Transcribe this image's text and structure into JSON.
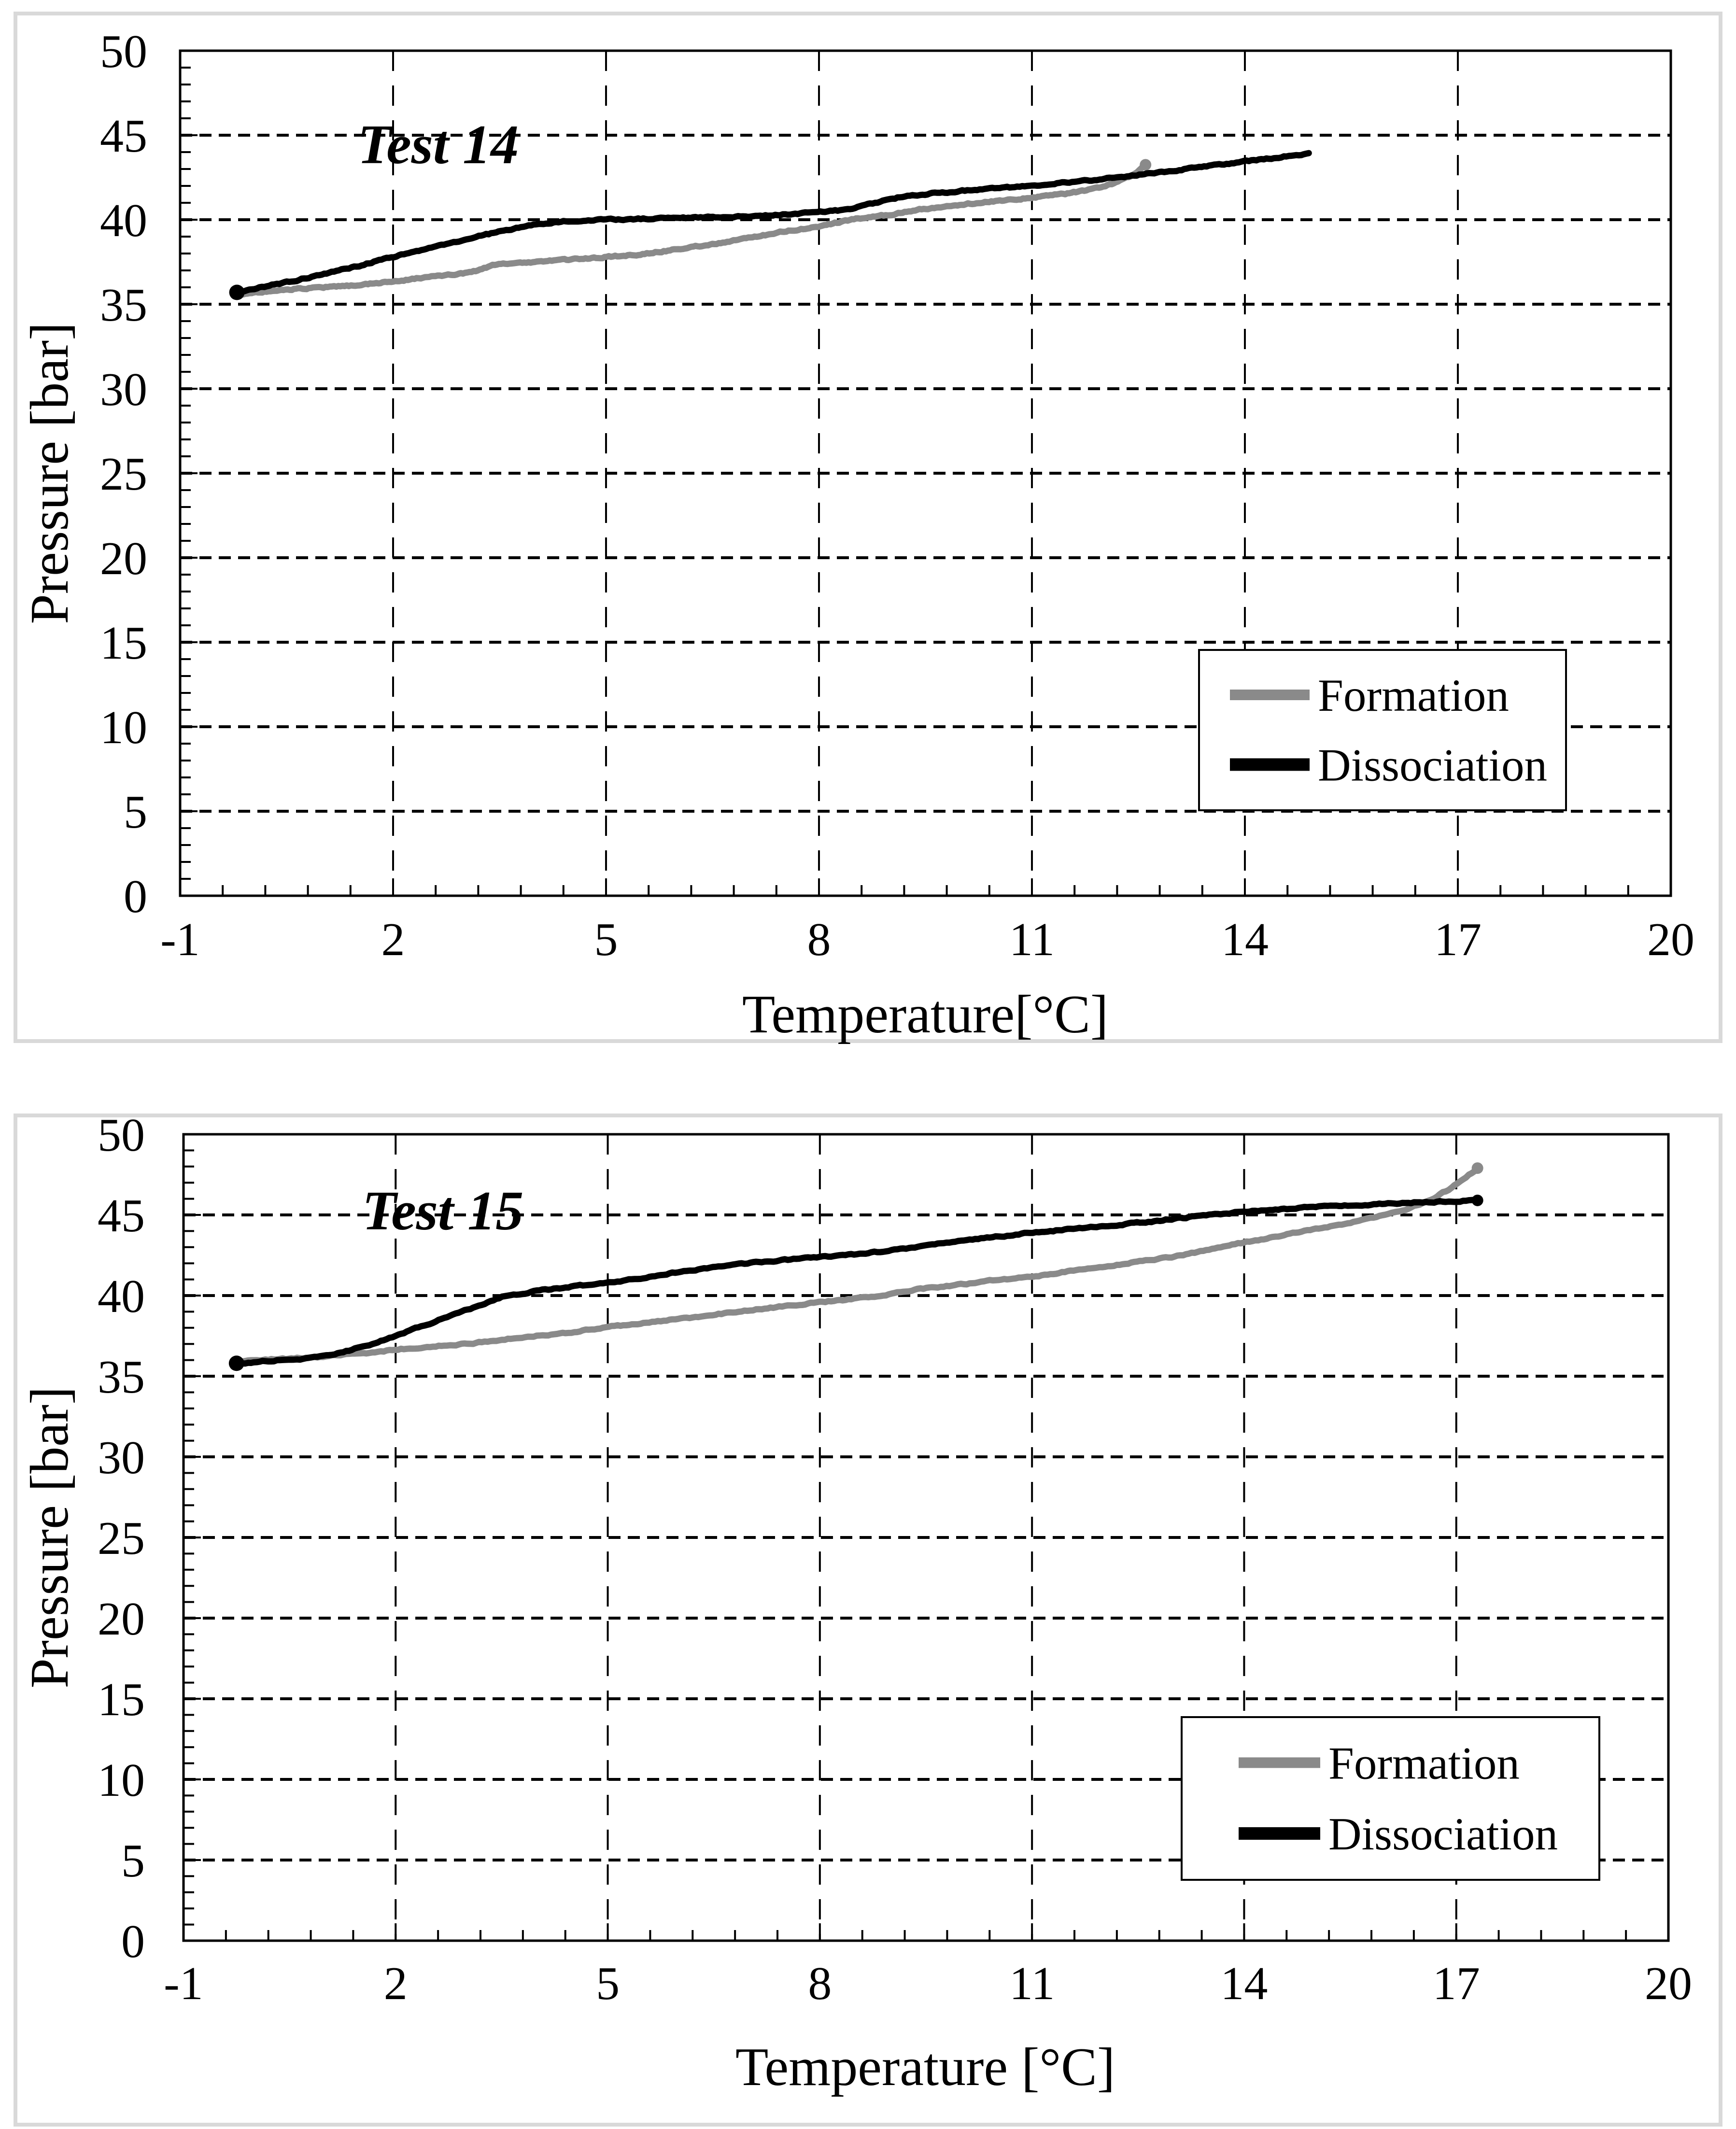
{
  "page": {
    "background": "#ffffff",
    "panel_border_color": "#d9d9d9",
    "text_color": "#000000"
  },
  "styles": {
    "formation_color": "#8a8a8a",
    "dissociation_color": "#000000",
    "grid_color": "#000000",
    "axis_color": "#000000",
    "legend_bg": "#ffffff",
    "legend_border": "#000000"
  },
  "chart_data": [
    {
      "type": "line",
      "title": "Test 14",
      "xlabel": "Temperature[°C]",
      "ylabel": "Pressure [bar]",
      "xlim": [
        -1,
        20
      ],
      "ylim": [
        0,
        50
      ],
      "x_ticks": [
        -1,
        2,
        5,
        8,
        11,
        14,
        17,
        20
      ],
      "y_ticks": [
        0,
        5,
        10,
        15,
        20,
        25,
        30,
        35,
        40,
        45,
        50
      ],
      "x_minor_step": 0.6,
      "y_minor_step": 1,
      "grid": "dashed-major",
      "legend_position": "lower-right",
      "series": [
        {
          "name": "Formation",
          "color": "#8a8a8a",
          "end_marker": true,
          "points": [
            [
              -0.2,
              35.55
            ],
            [
              0.3,
              35.8
            ],
            [
              0.8,
              35.95
            ],
            [
              1.4,
              36.1
            ],
            [
              2,
              36.35
            ],
            [
              2.5,
              36.6
            ],
            [
              3,
              36.85
            ],
            [
              3.2,
              37.0
            ],
            [
              3.45,
              37.35
            ],
            [
              4,
              37.5
            ],
            [
              4.5,
              37.65
            ],
            [
              5,
              37.8
            ],
            [
              5.5,
              37.95
            ],
            [
              6,
              38.25
            ],
            [
              6.5,
              38.55
            ],
            [
              7,
              38.9
            ],
            [
              7.5,
              39.3
            ],
            [
              8,
              39.6
            ],
            [
              8.45,
              40.0
            ],
            [
              8.8,
              40.2
            ],
            [
              9,
              40.3
            ],
            [
              9.5,
              40.65
            ],
            [
              10,
              40.9
            ],
            [
              10.5,
              41.1
            ],
            [
              11,
              41.3
            ],
            [
              11.5,
              41.55
            ],
            [
              11.9,
              41.85
            ],
            [
              12.2,
              42.2
            ],
            [
              12.45,
              42.7
            ],
            [
              12.6,
              43.25
            ]
          ]
        },
        {
          "name": "Dissociation",
          "color": "#000000",
          "start_marker": true,
          "points": [
            [
              -0.2,
              35.7
            ],
            [
              0,
              35.9
            ],
            [
              0.5,
              36.3
            ],
            [
              1,
              36.75
            ],
            [
              1.5,
              37.25
            ],
            [
              2,
              37.8
            ],
            [
              2.5,
              38.3
            ],
            [
              3,
              38.8
            ],
            [
              3.5,
              39.3
            ],
            [
              4,
              39.7
            ],
            [
              4.4,
              39.9
            ],
            [
              5,
              40.0
            ],
            [
              5.5,
              40.05
            ],
            [
              6,
              40.1
            ],
            [
              6.5,
              40.15
            ],
            [
              7,
              40.2
            ],
            [
              7.5,
              40.3
            ],
            [
              8,
              40.45
            ],
            [
              8.4,
              40.6
            ],
            [
              8.8,
              41.0
            ],
            [
              9.2,
              41.4
            ],
            [
              9.6,
              41.55
            ],
            [
              10,
              41.7
            ],
            [
              10.5,
              41.85
            ],
            [
              11,
              42.0
            ],
            [
              11.5,
              42.2
            ],
            [
              12,
              42.4
            ],
            [
              12.5,
              42.65
            ],
            [
              13,
              42.9
            ],
            [
              13.5,
              43.2
            ],
            [
              14,
              43.45
            ],
            [
              14.5,
              43.7
            ],
            [
              14.9,
              43.9
            ]
          ]
        }
      ]
    },
    {
      "type": "line",
      "title": "Test 15",
      "xlabel": "Temperature [°C]",
      "ylabel": "Pressure [bar]",
      "xlim": [
        -1,
        20
      ],
      "ylim": [
        0,
        50
      ],
      "x_ticks": [
        -1,
        2,
        5,
        8,
        11,
        14,
        17,
        20
      ],
      "y_ticks": [
        0,
        5,
        10,
        15,
        20,
        25,
        30,
        35,
        40,
        45,
        50
      ],
      "x_minor_step": 0.6,
      "y_minor_step": 1,
      "grid": "dashed-major",
      "legend_position": "lower-right",
      "series": [
        {
          "name": "Formation",
          "color": "#8a8a8a",
          "end_marker": true,
          "points": [
            [
              -0.25,
              35.9
            ],
            [
              0.3,
              36.05
            ],
            [
              0.8,
              36.15
            ],
            [
              1.5,
              36.4
            ],
            [
              2,
              36.65
            ],
            [
              2.5,
              36.85
            ],
            [
              3,
              37.0
            ],
            [
              3.5,
              37.25
            ],
            [
              4,
              37.5
            ],
            [
              4.5,
              37.75
            ],
            [
              5,
              38.05
            ],
            [
              5.5,
              38.3
            ],
            [
              6,
              38.55
            ],
            [
              6.5,
              38.8
            ],
            [
              7,
              39.1
            ],
            [
              7.5,
              39.35
            ],
            [
              8,
              39.6
            ],
            [
              8.5,
              39.8
            ],
            [
              9,
              40.1
            ],
            [
              9.5,
              40.45
            ],
            [
              10,
              40.7
            ],
            [
              10.5,
              40.95
            ],
            [
              11,
              41.15
            ],
            [
              11.5,
              41.5
            ],
            [
              12,
              41.8
            ],
            [
              12.5,
              42.1
            ],
            [
              13,
              42.4
            ],
            [
              13.5,
              42.85
            ],
            [
              14,
              43.3
            ],
            [
              14.5,
              43.7
            ],
            [
              15,
              44.1
            ],
            [
              15.5,
              44.5
            ],
            [
              16,
              45.0
            ],
            [
              16.3,
              45.35
            ],
            [
              16.6,
              45.85
            ],
            [
              16.9,
              46.6
            ],
            [
              17.1,
              47.2
            ],
            [
              17.3,
              47.9
            ]
          ]
        },
        {
          "name": "Dissociation",
          "color": "#000000",
          "start_marker": true,
          "end_marker": true,
          "points": [
            [
              -0.25,
              35.8
            ],
            [
              0.2,
              35.95
            ],
            [
              0.8,
              36.1
            ],
            [
              1.2,
              36.45
            ],
            [
              1.6,
              36.9
            ],
            [
              2,
              37.5
            ],
            [
              2.5,
              38.3
            ],
            [
              3,
              39.1
            ],
            [
              3.5,
              39.9
            ],
            [
              4,
              40.3
            ],
            [
              4.5,
              40.55
            ],
            [
              5,
              40.8
            ],
            [
              5.5,
              41.1
            ],
            [
              6,
              41.45
            ],
            [
              6.5,
              41.75
            ],
            [
              7,
              42.0
            ],
            [
              7.5,
              42.2
            ],
            [
              8,
              42.4
            ],
            [
              8.5,
              42.55
            ],
            [
              9,
              42.8
            ],
            [
              9.5,
              43.1
            ],
            [
              10,
              43.4
            ],
            [
              10.5,
              43.65
            ],
            [
              11,
              43.9
            ],
            [
              11.5,
              44.1
            ],
            [
              12,
              44.3
            ],
            [
              12.5,
              44.5
            ],
            [
              13,
              44.75
            ],
            [
              13.5,
              45.0
            ],
            [
              14,
              45.2
            ],
            [
              14.5,
              45.35
            ],
            [
              15,
              45.5
            ],
            [
              15.5,
              45.6
            ],
            [
              16,
              45.7
            ],
            [
              16.5,
              45.8
            ],
            [
              17,
              45.85
            ],
            [
              17.3,
              45.9
            ]
          ]
        }
      ]
    }
  ]
}
